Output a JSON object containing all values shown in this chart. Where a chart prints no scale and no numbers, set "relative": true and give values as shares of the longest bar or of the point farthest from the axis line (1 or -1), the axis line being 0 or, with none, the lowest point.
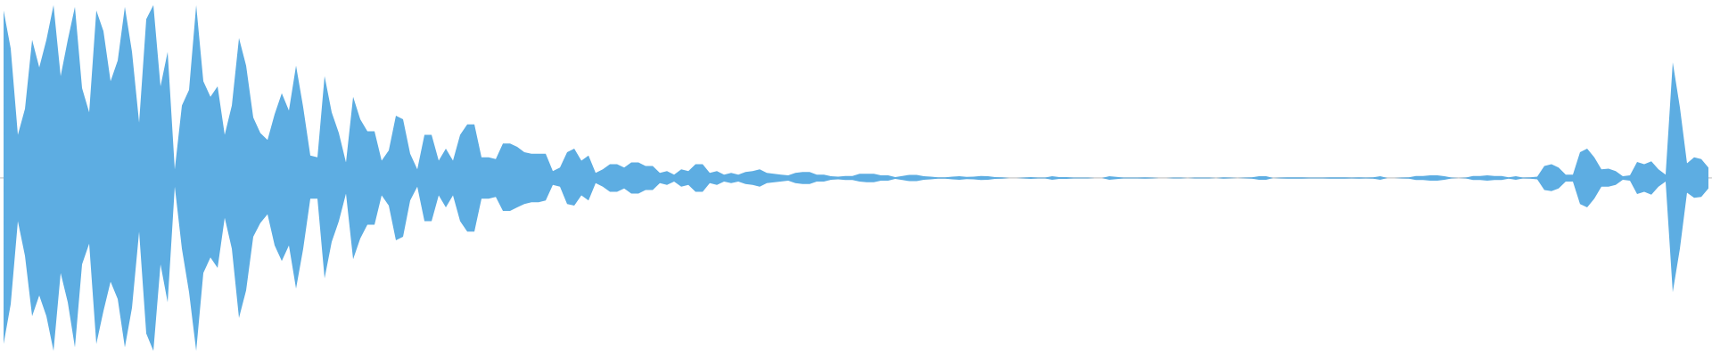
{
  "chart_data": {
    "type": "area",
    "relative": true,
    "categories": [
      null,
      null,
      null,
      null,
      null,
      null,
      null,
      null,
      null,
      null,
      null,
      null,
      null,
      null,
      null,
      null,
      null,
      null,
      null,
      null,
      null,
      null,
      null,
      null,
      null,
      null,
      null,
      null,
      null,
      null,
      null,
      null,
      null,
      null,
      null,
      null,
      null,
      null,
      null,
      null,
      null,
      null,
      null,
      null,
      null,
      null,
      null,
      null,
      null,
      null,
      null,
      null,
      null,
      null,
      null,
      null,
      null,
      null,
      null,
      null,
      null,
      null,
      null,
      null,
      null,
      null,
      null,
      null,
      null,
      null,
      null,
      null,
      null,
      null,
      null,
      null,
      null,
      null,
      null,
      null,
      null,
      null,
      null,
      null,
      null,
      null,
      null,
      null,
      null,
      null,
      null,
      null,
      null,
      null,
      null,
      null,
      null,
      null,
      null,
      null,
      null,
      null,
      null,
      null,
      null,
      null,
      null,
      null,
      null,
      null,
      null,
      null,
      null,
      null,
      null,
      null,
      null,
      null,
      null,
      null,
      null,
      null,
      null,
      null,
      null,
      null,
      null,
      null,
      null,
      null,
      null,
      null,
      null,
      null,
      null,
      null,
      null,
      null,
      null,
      null,
      null,
      null,
      null,
      null,
      null,
      null,
      null,
      null,
      null,
      null,
      null,
      null,
      null,
      null,
      null,
      null,
      null,
      null,
      null,
      null,
      null,
      null,
      null,
      null,
      null,
      null,
      null,
      null,
      null,
      null,
      null,
      null,
      null,
      null,
      null,
      null,
      null,
      null,
      null,
      null,
      null,
      null,
      null,
      null,
      null,
      null,
      null,
      null,
      null,
      null,
      null,
      null,
      null,
      null,
      null,
      null,
      null,
      null,
      null,
      null,
      null,
      null,
      null,
      null,
      null,
      null,
      null,
      null,
      null,
      null,
      null,
      null,
      null,
      null,
      null,
      null,
      null,
      null,
      null,
      null,
      null,
      null,
      null,
      null,
      null,
      null,
      null,
      null,
      null,
      null,
      null,
      null,
      null,
      null,
      null,
      null,
      null,
      null,
      null,
      null
    ],
    "series": [
      {
        "color": "#5dade2",
        "values": [
          0.97,
          0.75,
          0.25,
          0.4,
          0.8,
          0.64,
          0.8,
          1.0,
          0.59,
          0.8,
          0.99,
          0.52,
          0.38,
          0.97,
          0.85,
          0.56,
          0.68,
          0.99,
          0.73,
          0.32,
          0.92,
          1.0,
          0.53,
          0.73,
          0.05,
          0.42,
          0.51,
          1.0,
          0.56,
          0.47,
          0.53,
          0.25,
          0.42,
          0.81,
          0.65,
          0.35,
          0.26,
          0.22,
          0.37,
          0.49,
          0.39,
          0.65,
          0.41,
          0.13,
          0.12,
          0.59,
          0.38,
          0.26,
          0.09,
          0.47,
          0.34,
          0.27,
          0.27,
          0.1,
          0.16,
          0.36,
          0.34,
          0.14,
          0.05,
          0.25,
          0.25,
          0.1,
          0.17,
          0.1,
          0.25,
          0.31,
          0.31,
          0.12,
          0.12,
          0.11,
          0.2,
          0.2,
          0.18,
          0.15,
          0.14,
          0.14,
          0.14,
          0.04,
          0.06,
          0.15,
          0.17,
          0.1,
          0.13,
          0.03,
          0.05,
          0.08,
          0.08,
          0.06,
          0.09,
          0.09,
          0.07,
          0.07,
          0.03,
          0.04,
          0.02,
          0.05,
          0.04,
          0.08,
          0.08,
          0.03,
          0.04,
          0.02,
          0.03,
          0.02,
          0.035,
          0.04,
          0.05,
          0.03,
          0.025,
          0.02,
          0.015,
          0.03,
          0.035,
          0.035,
          0.02,
          0.02,
          0.01,
          0.008,
          0.012,
          0.012,
          0.025,
          0.025,
          0.025,
          0.015,
          0.015,
          0.005,
          0.012,
          0.018,
          0.018,
          0.01,
          0.008,
          0.004,
          0.004,
          0.008,
          0.01,
          0.006,
          0.008,
          0.012,
          0.01,
          0.005,
          0.004,
          0,
          0,
          0.003,
          0.005,
          0.003,
          0.003,
          0.01,
          0.005,
          0.005,
          0.003,
          0.003,
          0.003,
          0,
          0,
          0.01,
          0.006,
          0.003,
          0.003,
          0.003,
          0.004,
          0.003,
          0,
          0,
          0.002,
          0.002,
          0,
          0.002,
          0.002,
          0.002,
          0,
          0.004,
          0.002,
          0,
          0.002,
          0.004,
          0.01,
          0.01,
          0,
          0.003,
          0.004,
          0.004,
          0.004,
          0.002,
          0.002,
          0.002,
          0.004,
          0.004,
          0.004,
          0.002,
          0.004,
          0.002,
          0.004,
          0.01,
          0,
          0,
          0.003,
          0.004,
          0.012,
          0.012,
          0.015,
          0.015,
          0.01,
          0.003,
          0,
          0.003,
          0.012,
          0.012,
          0.015,
          0.012,
          0.012,
          0.004,
          0.01,
          0.003,
          0.004,
          0.008,
          0.07,
          0.08,
          0.06,
          0.02,
          0.02,
          0.15,
          0.17,
          0.12,
          0.05,
          0.054,
          0.04,
          0.01,
          0.015,
          0.093,
          0.08,
          0.097,
          0.05,
          0.02,
          0.67,
          0.41,
          0.085,
          0.12,
          0.11,
          0.06
        ]
      },
      {
        "color": "#5dade2",
        "values": [
          -0.96,
          -0.73,
          -0.25,
          -0.45,
          -0.8,
          -0.68,
          -0.8,
          -1.0,
          -0.55,
          -0.72,
          -0.98,
          -0.5,
          -0.38,
          -0.96,
          -0.77,
          -0.6,
          -0.7,
          -0.98,
          -0.75,
          -0.31,
          -0.9,
          -1.0,
          -0.5,
          -0.72,
          -0.05,
          -0.41,
          -0.66,
          -1.0,
          -0.55,
          -0.46,
          -0.52,
          -0.23,
          -0.41,
          -0.81,
          -0.65,
          -0.34,
          -0.26,
          -0.21,
          -0.39,
          -0.48,
          -0.39,
          -0.64,
          -0.41,
          -0.12,
          -0.12,
          -0.58,
          -0.37,
          -0.25,
          -0.09,
          -0.47,
          -0.35,
          -0.27,
          -0.27,
          -0.1,
          -0.16,
          -0.36,
          -0.34,
          -0.13,
          -0.05,
          -0.25,
          -0.25,
          -0.1,
          -0.17,
          -0.1,
          -0.25,
          -0.31,
          -0.31,
          -0.12,
          -0.12,
          -0.11,
          -0.19,
          -0.19,
          -0.17,
          -0.15,
          -0.14,
          -0.14,
          -0.13,
          -0.04,
          -0.05,
          -0.15,
          -0.16,
          -0.1,
          -0.13,
          -0.03,
          -0.05,
          -0.08,
          -0.08,
          -0.06,
          -0.09,
          -0.09,
          -0.07,
          -0.07,
          -0.03,
          -0.04,
          -0.02,
          -0.05,
          -0.04,
          -0.08,
          -0.08,
          -0.03,
          -0.04,
          -0.02,
          -0.03,
          -0.02,
          -0.035,
          -0.04,
          -0.05,
          -0.03,
          -0.025,
          -0.02,
          -0.015,
          -0.03,
          -0.035,
          -0.035,
          -0.02,
          -0.02,
          -0.01,
          -0.008,
          -0.012,
          -0.012,
          -0.02,
          -0.025,
          -0.025,
          -0.015,
          -0.015,
          -0.005,
          -0.012,
          -0.018,
          -0.018,
          -0.01,
          -0.008,
          -0.004,
          -0.004,
          -0.008,
          -0.01,
          -0.006,
          -0.008,
          -0.012,
          -0.01,
          -0.005,
          -0.004,
          0,
          0,
          -0.003,
          -0.005,
          -0.003,
          -0.003,
          -0.01,
          -0.005,
          -0.005,
          -0.003,
          -0.003,
          -0.003,
          0,
          0,
          -0.01,
          -0.006,
          -0.003,
          -0.003,
          -0.003,
          -0.004,
          -0.003,
          0,
          0,
          -0.002,
          -0.002,
          0,
          -0.002,
          -0.002,
          -0.002,
          0,
          -0.004,
          -0.002,
          0,
          -0.002,
          -0.004,
          -0.01,
          -0.01,
          0,
          -0.003,
          -0.004,
          -0.004,
          -0.004,
          -0.002,
          -0.002,
          -0.002,
          -0.004,
          -0.004,
          -0.004,
          -0.002,
          -0.004,
          -0.002,
          -0.004,
          -0.01,
          0,
          0,
          -0.003,
          -0.004,
          -0.012,
          -0.012,
          -0.015,
          -0.015,
          -0.01,
          -0.003,
          0,
          -0.003,
          -0.012,
          -0.012,
          -0.015,
          -0.012,
          -0.012,
          -0.004,
          -0.01,
          -0.003,
          -0.004,
          -0.008,
          -0.07,
          -0.076,
          -0.06,
          -0.02,
          -0.02,
          -0.15,
          -0.17,
          -0.12,
          -0.05,
          -0.05,
          -0.04,
          -0.01,
          -0.015,
          -0.093,
          -0.08,
          -0.097,
          -0.05,
          -0.02,
          -0.66,
          -0.41,
          -0.085,
          -0.115,
          -0.11,
          -0.06
        ]
      }
    ]
  }
}
